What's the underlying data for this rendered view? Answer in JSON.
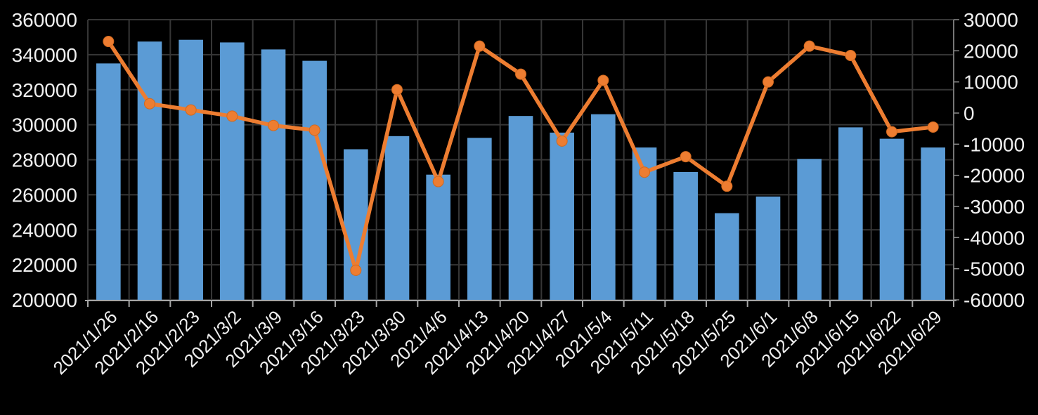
{
  "window": {
    "background": "#000000"
  },
  "style": {
    "background": "#000000",
    "bar_color": "#5B9BD5",
    "line_color": "#ED7D31",
    "marker_fill": "#ED7D31",
    "marker_edge_color": "#D2691E",
    "gridline_color": "#363636",
    "x_axis_line_color": "#A6A6A6",
    "right_axis_line_color": "#8C8C8C",
    "label_color": "#F0F0F0"
  },
  "chart_data": {
    "type": "combo-bar-line",
    "title": "",
    "legend": "none",
    "grid": true,
    "categories": [
      "2021/1/26",
      "2021/2/16",
      "2021/2/23",
      "2021/3/2",
      "2021/3/9",
      "2021/3/16",
      "2021/3/23",
      "2021/3/30",
      "2021/4/6",
      "2021/4/13",
      "2021/4/20",
      "2021/4/27",
      "2021/5/4",
      "2021/5/11",
      "2021/5/18",
      "2021/5/25",
      "2021/6/1",
      "2021/6/8",
      "2021/6/15",
      "2021/6/22",
      "2021/6/29"
    ],
    "series": [
      {
        "type": "bar",
        "axis": "left",
        "values": [
          335000,
          347500,
          348500,
          347000,
          343000,
          336500,
          286000,
          293500,
          271500,
          292500,
          305000,
          295500,
          306000,
          287000,
          273000,
          249500,
          259000,
          280500,
          298500,
          292000,
          287000
        ]
      },
      {
        "type": "line",
        "axis": "right",
        "values": [
          23000,
          3000,
          1000,
          -1000,
          -4000,
          -5500,
          -50500,
          7500,
          -22000,
          21500,
          12500,
          -9000,
          10500,
          -19000,
          -14000,
          -23500,
          10000,
          21500,
          18500,
          -6000,
          -4500
        ]
      }
    ],
    "left_axis": {
      "min": 200000,
      "max": 360000,
      "step": 20000,
      "labels": [
        "360000",
        "340000",
        "320000",
        "300000",
        "280000",
        "260000",
        "240000",
        "220000",
        "200000"
      ]
    },
    "right_axis": {
      "min": -60000,
      "max": 30000,
      "step": 10000,
      "labels": [
        "30000",
        "20000",
        "10000",
        "0",
        "-10000",
        "-20000",
        "-30000",
        "-40000",
        "-50000",
        "-60000"
      ]
    },
    "x_axis": {
      "label_rotation_deg": -45
    }
  }
}
